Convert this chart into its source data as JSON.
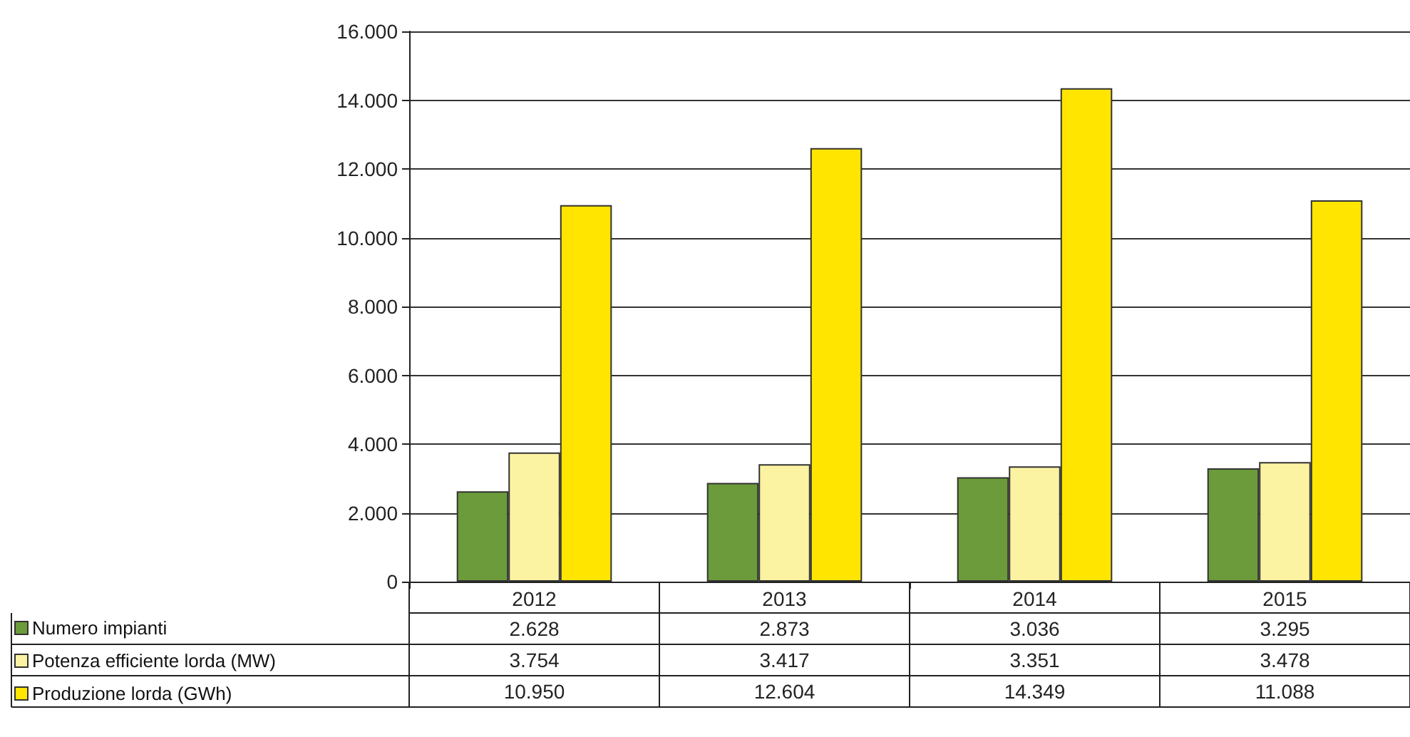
{
  "chart_data": {
    "type": "bar",
    "categories": [
      "2012",
      "2013",
      "2014",
      "2015"
    ],
    "series": [
      {
        "name": "Numero impianti",
        "color": "#6b9b3a",
        "values": [
          2628,
          2873,
          3036,
          3295
        ],
        "value_labels": [
          "2.628",
          "2.873",
          "3.036",
          "3.295"
        ]
      },
      {
        "name": "Potenza efficiente lorda (MW)",
        "color": "#fbf3a2",
        "values": [
          3754,
          3417,
          3351,
          3478
        ],
        "value_labels": [
          "3.754",
          "3.417",
          "3.351",
          "3.478"
        ]
      },
      {
        "name": "Produzione lorda (GWh)",
        "color": "#ffe500",
        "values": [
          10950,
          12604,
          14349,
          11088
        ],
        "value_labels": [
          "10.950",
          "12.604",
          "14.349",
          "11.088"
        ]
      }
    ],
    "ylim": [
      0,
      16000
    ],
    "yticks": [
      {
        "value": 0,
        "label": "0"
      },
      {
        "value": 2000,
        "label": "2.000"
      },
      {
        "value": 4000,
        "label": "4.000"
      },
      {
        "value": 6000,
        "label": "6.000"
      },
      {
        "value": 8000,
        "label": "8.000"
      },
      {
        "value": 10000,
        "label": "10.000"
      },
      {
        "value": 12000,
        "label": "12.000"
      },
      {
        "value": 14000,
        "label": "14.000"
      },
      {
        "value": 16000,
        "label": "16.000"
      }
    ],
    "grid": "y",
    "legend": "bottom left"
  }
}
